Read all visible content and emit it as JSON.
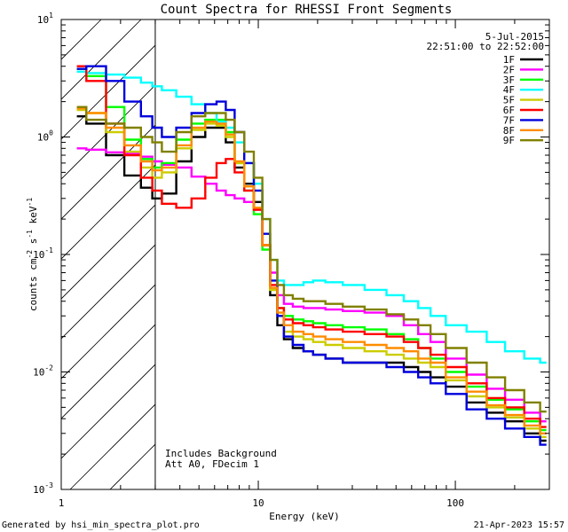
{
  "chart_data": {
    "type": "line",
    "scale": {
      "x": "log",
      "y": "log"
    },
    "title": "Count Spectra for RHESSI Front Segments",
    "xlabel": "Energy (keV)",
    "ylabel": {
      "base": "counts cm",
      "exp1": "-2",
      "mid": " s",
      "exp2": "-1",
      "tail": " keV",
      "exp3": "-1"
    },
    "xlim": [
      1,
      300
    ],
    "ylim": [
      0.001,
      10
    ],
    "x_ticks": [
      {
        "value": 1,
        "label": "1"
      },
      {
        "value": 10,
        "label": "10"
      },
      {
        "value": 100,
        "label": "100"
      }
    ],
    "y_ticks": [
      {
        "value": 10,
        "base": "10",
        "exp": "1"
      },
      {
        "value": 1,
        "base": "10",
        "exp": "0"
      },
      {
        "value": 0.1,
        "base": "10",
        "exp": "-1"
      },
      {
        "value": 0.01,
        "base": "10",
        "exp": "-2"
      },
      {
        "value": 0.001,
        "base": "10",
        "exp": "-3"
      }
    ],
    "date": "5-Jul-2015",
    "time_range": "22:51:00 to 22:52:00",
    "annotation": [
      "Includes Background",
      "Att A0, FDecim 1"
    ],
    "attenuator_energy_keV": 3,
    "series": [
      {
        "name": "1F",
        "color": "#000000",
        "x": [
          1.2,
          1.5,
          1.9,
          2.3,
          2.8,
          3.0,
          3.5,
          4.2,
          5.0,
          5.8,
          6.5,
          7.2,
          8.0,
          9.0,
          10.0,
          11.0,
          12.0,
          13.0,
          14.0,
          16.0,
          18.0,
          20.0,
          24.0,
          30.0,
          40.0,
          50.0,
          60.0,
          70.0,
          80.0,
          100.0,
          130.0,
          160.0,
          200.0,
          250.0,
          290.0
        ],
        "y": [
          1.5,
          1.3,
          0.7,
          0.47,
          0.37,
          0.3,
          0.33,
          0.62,
          1.0,
          1.2,
          1.2,
          0.9,
          0.55,
          0.4,
          0.28,
          0.12,
          0.045,
          0.025,
          0.019,
          0.016,
          0.015,
          0.014,
          0.013,
          0.012,
          0.012,
          0.012,
          0.011,
          0.01,
          0.009,
          0.0075,
          0.0055,
          0.0045,
          0.0038,
          0.003,
          0.0026
        ]
      },
      {
        "name": "2F",
        "color": "#ff00ff",
        "x": [
          1.2,
          1.5,
          1.9,
          2.3,
          2.8,
          3.0,
          3.5,
          4.2,
          5.0,
          5.8,
          6.5,
          7.2,
          8.0,
          9.0,
          10.0,
          11.0,
          12.0,
          13.0,
          14.0,
          16.0,
          18.0,
          20.0,
          24.0,
          30.0,
          40.0,
          50.0,
          60.0,
          70.0,
          80.0,
          100.0,
          130.0,
          160.0,
          200.0,
          250.0,
          290.0
        ],
        "y": [
          0.8,
          0.78,
          0.74,
          0.72,
          0.68,
          0.62,
          0.58,
          0.55,
          0.46,
          0.4,
          0.35,
          0.32,
          0.3,
          0.28,
          0.24,
          0.12,
          0.07,
          0.045,
          0.038,
          0.036,
          0.035,
          0.035,
          0.034,
          0.033,
          0.032,
          0.03,
          0.025,
          0.021,
          0.018,
          0.013,
          0.0095,
          0.0072,
          0.0058,
          0.0045,
          0.0038
        ]
      },
      {
        "name": "3F",
        "color": "#00ff00",
        "x": [
          1.2,
          1.5,
          1.9,
          2.3,
          2.8,
          3.0,
          3.5,
          4.2,
          5.0,
          5.8,
          6.5,
          7.2,
          8.0,
          9.0,
          10.0,
          11.0,
          12.0,
          13.0,
          14.0,
          16.0,
          18.0,
          20.0,
          24.0,
          30.0,
          40.0,
          50.0,
          60.0,
          70.0,
          80.0,
          100.0,
          130.0,
          160.0,
          200.0,
          250.0,
          290.0
        ],
        "y": [
          3.8,
          3.3,
          1.8,
          0.95,
          0.65,
          0.55,
          0.6,
          0.95,
          1.3,
          1.4,
          1.4,
          1.1,
          0.6,
          0.35,
          0.22,
          0.11,
          0.05,
          0.035,
          0.03,
          0.028,
          0.027,
          0.026,
          0.025,
          0.024,
          0.023,
          0.021,
          0.019,
          0.016,
          0.013,
          0.01,
          0.0075,
          0.0058,
          0.0048,
          0.0038,
          0.0032
        ]
      },
      {
        "name": "4F",
        "color": "#00ffff",
        "x": [
          1.2,
          1.5,
          1.9,
          2.3,
          2.8,
          3.0,
          3.5,
          4.2,
          5.0,
          5.8,
          6.5,
          7.2,
          8.0,
          9.0,
          10.0,
          11.0,
          12.0,
          13.0,
          14.0,
          16.0,
          18.0,
          20.0,
          24.0,
          30.0,
          40.0,
          50.0,
          60.0,
          70.0,
          80.0,
          100.0,
          130.0,
          160.0,
          200.0,
          250.0,
          290.0
        ],
        "y": [
          3.6,
          3.5,
          3.4,
          3.2,
          2.9,
          2.7,
          2.5,
          2.2,
          1.9,
          1.6,
          1.35,
          1.2,
          0.9,
          0.6,
          0.4,
          0.2,
          0.09,
          0.06,
          0.055,
          0.055,
          0.058,
          0.06,
          0.058,
          0.055,
          0.05,
          0.045,
          0.04,
          0.035,
          0.03,
          0.025,
          0.022,
          0.018,
          0.015,
          0.013,
          0.012
        ]
      },
      {
        "name": "5F",
        "color": "#cccc00",
        "x": [
          1.2,
          1.5,
          1.9,
          2.3,
          2.8,
          3.0,
          3.5,
          4.2,
          5.0,
          5.8,
          6.5,
          7.2,
          8.0,
          9.0,
          10.0,
          11.0,
          12.0,
          13.0,
          14.0,
          16.0,
          18.0,
          20.0,
          24.0,
          30.0,
          40.0,
          50.0,
          60.0,
          70.0,
          80.0,
          100.0,
          130.0,
          160.0,
          200.0,
          250.0,
          290.0
        ],
        "y": [
          1.7,
          1.6,
          1.1,
          0.75,
          0.55,
          0.45,
          0.5,
          0.8,
          1.15,
          1.3,
          1.25,
          1.0,
          0.6,
          0.38,
          0.25,
          0.12,
          0.05,
          0.03,
          0.022,
          0.02,
          0.019,
          0.018,
          0.017,
          0.016,
          0.015,
          0.014,
          0.013,
          0.012,
          0.011,
          0.0085,
          0.0062,
          0.005,
          0.0041,
          0.0033,
          0.0028
        ]
      },
      {
        "name": "6F",
        "color": "#ff0000",
        "x": [
          1.2,
          1.5,
          1.9,
          2.3,
          2.8,
          3.0,
          3.5,
          4.2,
          5.0,
          5.8,
          6.5,
          7.2,
          8.0,
          9.0,
          10.0,
          11.0,
          12.0,
          13.0,
          14.0,
          16.0,
          18.0,
          20.0,
          24.0,
          30.0,
          40.0,
          50.0,
          60.0,
          70.0,
          80.0,
          100.0,
          130.0,
          160.0,
          200.0,
          250.0,
          290.0
        ],
        "y": [
          4.0,
          3.0,
          1.3,
          0.7,
          0.45,
          0.35,
          0.27,
          0.25,
          0.3,
          0.45,
          0.6,
          0.65,
          0.5,
          0.35,
          0.24,
          0.12,
          0.055,
          0.035,
          0.028,
          0.026,
          0.025,
          0.024,
          0.023,
          0.022,
          0.021,
          0.02,
          0.018,
          0.016,
          0.014,
          0.011,
          0.008,
          0.006,
          0.005,
          0.004,
          0.0034
        ]
      },
      {
        "name": "7F",
        "color": "#0000dd",
        "x": [
          1.2,
          1.5,
          1.9,
          2.3,
          2.8,
          3.0,
          3.5,
          4.2,
          5.0,
          5.8,
          6.5,
          7.2,
          8.0,
          9.0,
          10.0,
          11.0,
          12.0,
          13.0,
          14.0,
          16.0,
          18.0,
          20.0,
          24.0,
          30.0,
          40.0,
          50.0,
          60.0,
          70.0,
          80.0,
          100.0,
          130.0,
          160.0,
          200.0,
          250.0,
          290.0
        ],
        "y": [
          3.8,
          4.0,
          3.0,
          2.0,
          1.5,
          1.2,
          1.0,
          1.2,
          1.6,
          1.9,
          2.0,
          1.7,
          1.1,
          0.6,
          0.35,
          0.15,
          0.06,
          0.03,
          0.02,
          0.017,
          0.015,
          0.014,
          0.013,
          0.012,
          0.012,
          0.011,
          0.01,
          0.009,
          0.008,
          0.0065,
          0.0048,
          0.004,
          0.0033,
          0.0028,
          0.0024
        ]
      },
      {
        "name": "8F",
        "color": "#ff8c00",
        "x": [
          1.2,
          1.5,
          1.9,
          2.3,
          2.8,
          3.0,
          3.5,
          4.2,
          5.0,
          5.8,
          6.5,
          7.2,
          8.0,
          9.0,
          10.0,
          11.0,
          12.0,
          13.0,
          14.0,
          16.0,
          18.0,
          20.0,
          24.0,
          30.0,
          40.0,
          50.0,
          60.0,
          70.0,
          80.0,
          100.0,
          130.0,
          160.0,
          200.0,
          250.0,
          290.0
        ],
        "y": [
          1.75,
          1.6,
          1.2,
          0.85,
          0.62,
          0.52,
          0.55,
          0.85,
          1.2,
          1.35,
          1.3,
          1.05,
          0.62,
          0.38,
          0.25,
          0.12,
          0.052,
          0.032,
          0.025,
          0.022,
          0.021,
          0.02,
          0.019,
          0.018,
          0.017,
          0.016,
          0.015,
          0.013,
          0.012,
          0.009,
          0.0068,
          0.0052,
          0.0043,
          0.0035,
          0.003
        ]
      },
      {
        "name": "9F",
        "color": "#808000",
        "x": [
          1.2,
          1.5,
          1.9,
          2.3,
          2.8,
          3.0,
          3.5,
          4.2,
          5.0,
          5.8,
          6.5,
          7.2,
          8.0,
          9.0,
          10.0,
          11.0,
          12.0,
          13.0,
          14.0,
          16.0,
          18.0,
          20.0,
          24.0,
          30.0,
          40.0,
          50.0,
          60.0,
          70.0,
          80.0,
          100.0,
          130.0,
          160.0,
          200.0,
          250.0,
          290.0
        ],
        "y": [
          1.8,
          1.4,
          1.3,
          1.2,
          1.0,
          0.9,
          0.75,
          1.1,
          1.5,
          1.6,
          1.6,
          1.4,
          1.1,
          0.75,
          0.45,
          0.2,
          0.09,
          0.055,
          0.045,
          0.042,
          0.04,
          0.04,
          0.038,
          0.036,
          0.034,
          0.031,
          0.028,
          0.025,
          0.021,
          0.016,
          0.012,
          0.009,
          0.007,
          0.0055,
          0.0046
        ]
      }
    ]
  },
  "footer": {
    "left": "Generated by hsi_min_spectra_plot.pro",
    "right": "21-Apr-2023 15:57"
  }
}
